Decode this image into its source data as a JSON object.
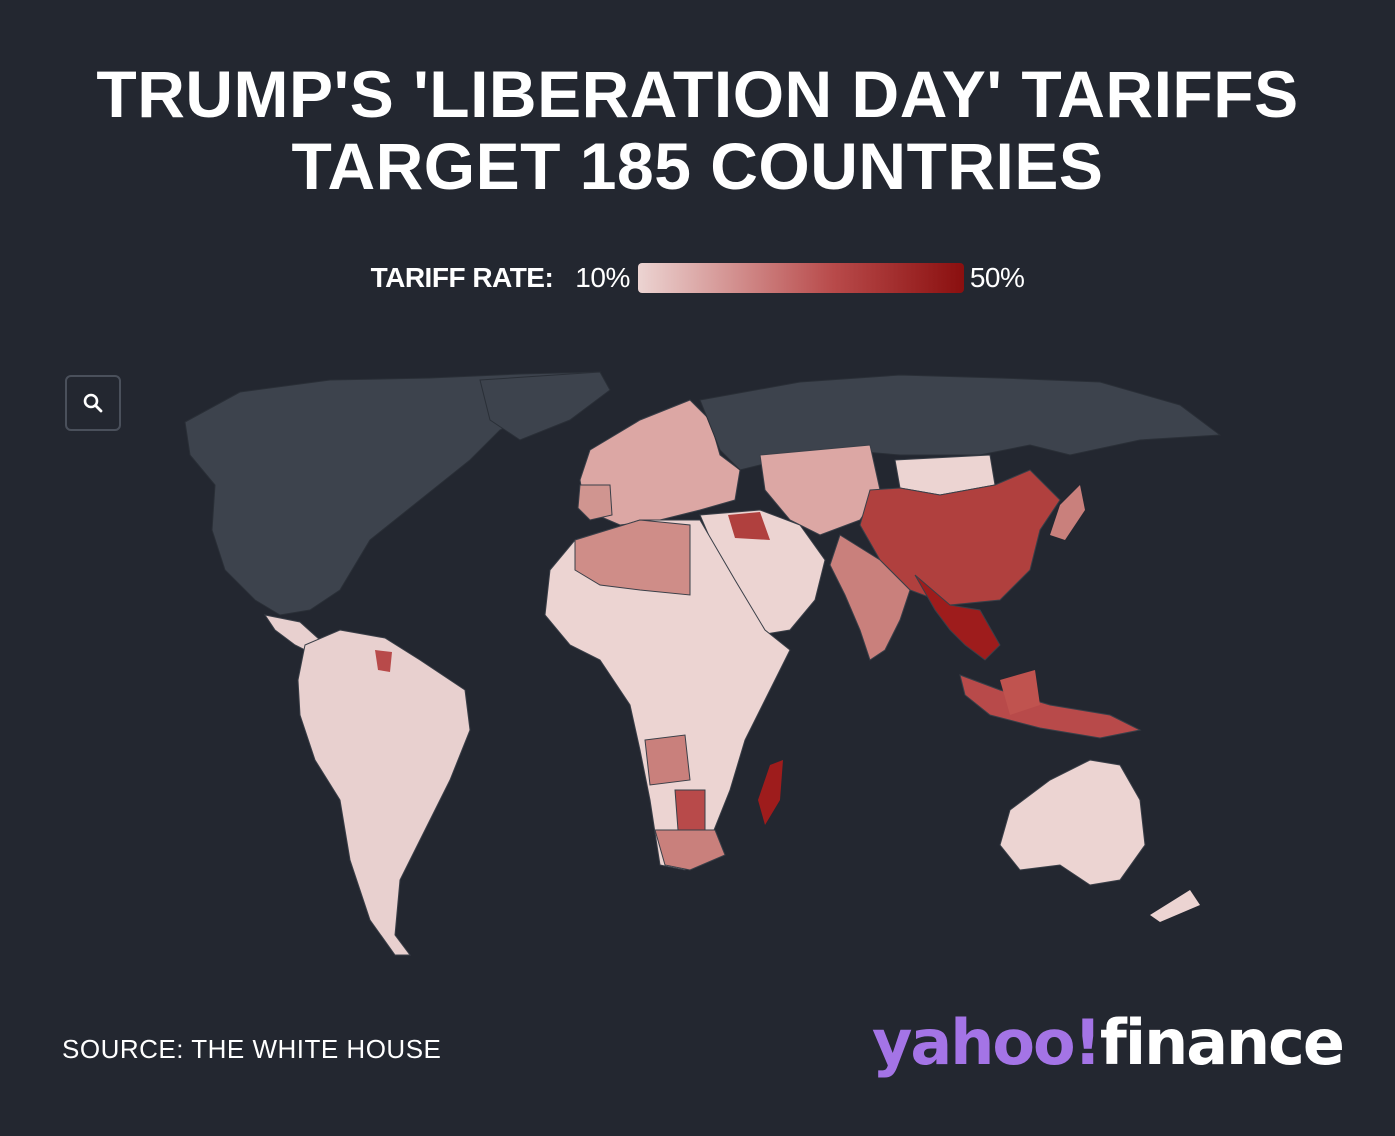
{
  "title": {
    "line1": "TRUMP'S 'LIBERATION DAY' TARIFFS",
    "line2": "TARGET 185 COUNTRIES"
  },
  "legend": {
    "label": "TARIFF RATE:",
    "min": "10%",
    "max": "50%",
    "colors": {
      "low": "#ecd4d2",
      "mid": "#b84a4a",
      "high": "#8a0f0f"
    }
  },
  "toolbar": {
    "search_icon": "search-icon"
  },
  "map": {
    "background": "#232730",
    "land_no_data": "#3d434d",
    "regions": [
      {
        "name": "North America",
        "level": "none"
      },
      {
        "name": "South America",
        "level": "low"
      },
      {
        "name": "Europe",
        "level": "low-mid"
      },
      {
        "name": "Africa",
        "level": "low"
      },
      {
        "name": "Russia",
        "level": "none"
      },
      {
        "name": "China",
        "level": "high"
      },
      {
        "name": "India",
        "level": "mid"
      },
      {
        "name": "Southeast Asia",
        "level": "highest"
      },
      {
        "name": "Australia",
        "level": "low"
      }
    ]
  },
  "footer": {
    "source": "SOURCE: THE WHITE HOUSE",
    "logo_yahoo": "yahoo!",
    "logo_finance": "finance"
  }
}
